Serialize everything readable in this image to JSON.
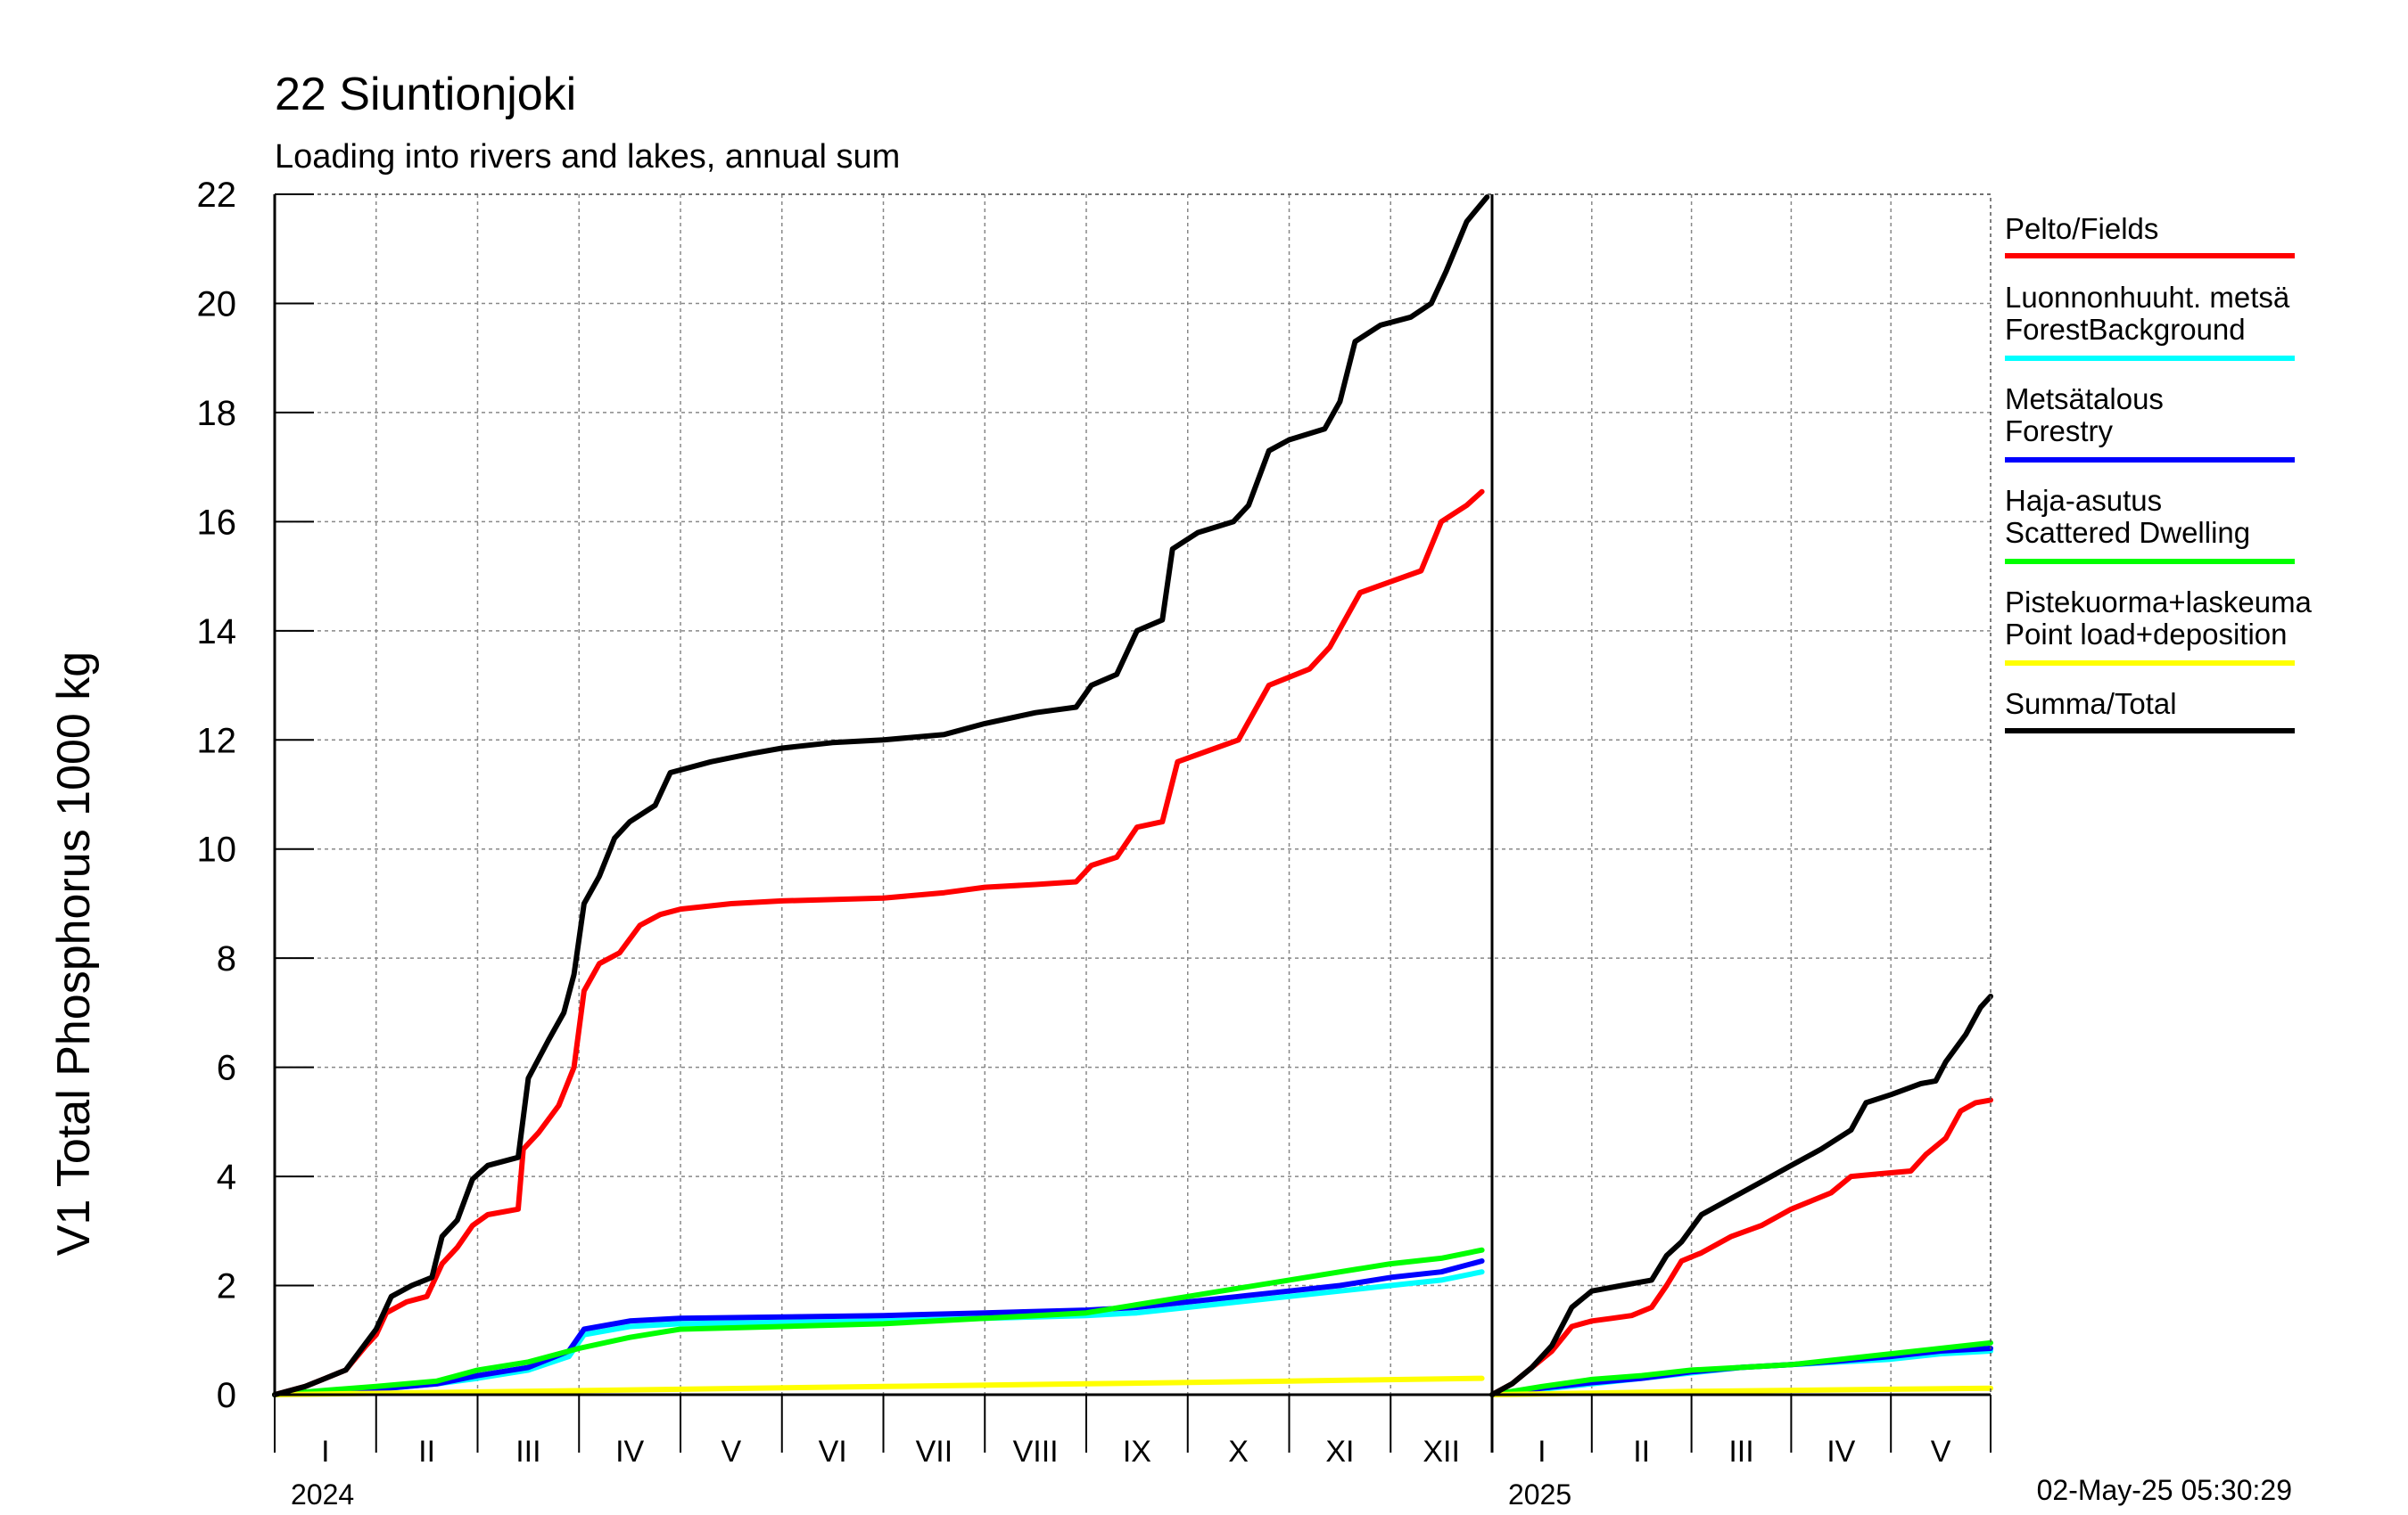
{
  "title": "22 Siuntionjoki",
  "subtitle": "Loading into rivers and lakes, annual sum",
  "timestamp": "02-May-25 05:30:29",
  "chart_data": {
    "type": "line",
    "ylabel": "V1 Total Phosphorus 1000 kg",
    "ylim": [
      0,
      22
    ],
    "yticks": [
      "0",
      "2",
      "4",
      "6",
      "8",
      "10",
      "12",
      "14",
      "16",
      "18",
      "20",
      "22"
    ],
    "grid": true,
    "legend_position": "right",
    "x_unit": "month",
    "panels": [
      {
        "year": "2024",
        "month_labels": [
          "I",
          "II",
          "III",
          "IV",
          "V",
          "VI",
          "VII",
          "VIII",
          "IX",
          "X",
          "XI",
          "XII"
        ],
        "xlim": [
          0,
          12
        ]
      },
      {
        "year": "2025",
        "month_labels": [
          "I",
          "II",
          "III",
          "IV",
          "V"
        ],
        "xlim": [
          0,
          5
        ]
      }
    ],
    "series": [
      {
        "name": "Pelto/Fields",
        "color": "#ff0000",
        "data_2024": [
          [
            0,
            0
          ],
          [
            0.3,
            0.15
          ],
          [
            0.5,
            0.3
          ],
          [
            0.7,
            0.45
          ],
          [
            0.9,
            0.9
          ],
          [
            1.0,
            1.1
          ],
          [
            1.1,
            1.5
          ],
          [
            1.3,
            1.7
          ],
          [
            1.5,
            1.8
          ],
          [
            1.65,
            2.4
          ],
          [
            1.8,
            2.7
          ],
          [
            1.95,
            3.1
          ],
          [
            2.1,
            3.3
          ],
          [
            2.4,
            3.4
          ],
          [
            2.45,
            4.5
          ],
          [
            2.6,
            4.8
          ],
          [
            2.8,
            5.3
          ],
          [
            2.95,
            6.0
          ],
          [
            3.05,
            7.4
          ],
          [
            3.2,
            7.9
          ],
          [
            3.4,
            8.1
          ],
          [
            3.6,
            8.6
          ],
          [
            3.8,
            8.8
          ],
          [
            4.0,
            8.9
          ],
          [
            4.5,
            9.0
          ],
          [
            5.0,
            9.05
          ],
          [
            6.0,
            9.1
          ],
          [
            6.6,
            9.2
          ],
          [
            7.0,
            9.3
          ],
          [
            7.5,
            9.35
          ],
          [
            7.9,
            9.4
          ],
          [
            8.05,
            9.7
          ],
          [
            8.3,
            9.85
          ],
          [
            8.5,
            10.4
          ],
          [
            8.75,
            10.5
          ],
          [
            8.9,
            11.6
          ],
          [
            9.2,
            11.8
          ],
          [
            9.5,
            12.0
          ],
          [
            9.8,
            13.0
          ],
          [
            10.2,
            13.3
          ],
          [
            10.4,
            13.7
          ],
          [
            10.7,
            14.7
          ],
          [
            11.0,
            14.9
          ],
          [
            11.3,
            15.1
          ],
          [
            11.5,
            16.0
          ],
          [
            11.75,
            16.3
          ],
          [
            11.9,
            16.55
          ]
        ],
        "data_2025": [
          [
            0,
            0
          ],
          [
            0.2,
            0.2
          ],
          [
            0.4,
            0.5
          ],
          [
            0.6,
            0.8
          ],
          [
            0.8,
            1.25
          ],
          [
            1.0,
            1.35
          ],
          [
            1.2,
            1.4
          ],
          [
            1.4,
            1.45
          ],
          [
            1.6,
            1.6
          ],
          [
            1.75,
            2.0
          ],
          [
            1.9,
            2.45
          ],
          [
            2.1,
            2.6
          ],
          [
            2.4,
            2.9
          ],
          [
            2.7,
            3.1
          ],
          [
            3.0,
            3.4
          ],
          [
            3.4,
            3.7
          ],
          [
            3.6,
            4.0
          ],
          [
            3.9,
            4.05
          ],
          [
            4.2,
            4.1
          ],
          [
            4.35,
            4.4
          ],
          [
            4.55,
            4.7
          ],
          [
            4.7,
            5.2
          ],
          [
            4.85,
            5.35
          ],
          [
            5.0,
            5.4
          ]
        ]
      },
      {
        "name": "Luonnonhuuht. metsä ForestBackground",
        "label_lines": [
          "Luonnonhuuht. metsä",
          "ForestBackground"
        ],
        "color": "#00ffff",
        "data_2024": [
          [
            0,
            0
          ],
          [
            0.5,
            0.05
          ],
          [
            1.0,
            0.1
          ],
          [
            1.6,
            0.2
          ],
          [
            2.0,
            0.3
          ],
          [
            2.5,
            0.45
          ],
          [
            2.9,
            0.7
          ],
          [
            3.05,
            1.1
          ],
          [
            3.5,
            1.25
          ],
          [
            4.0,
            1.3
          ],
          [
            6.0,
            1.35
          ],
          [
            7.0,
            1.4
          ],
          [
            8.0,
            1.45
          ],
          [
            8.5,
            1.5
          ],
          [
            9.0,
            1.6
          ],
          [
            9.5,
            1.7
          ],
          [
            10.0,
            1.8
          ],
          [
            10.5,
            1.9
          ],
          [
            11.0,
            2.0
          ],
          [
            11.5,
            2.1
          ],
          [
            11.9,
            2.25
          ]
        ],
        "data_2025": [
          [
            0,
            0
          ],
          [
            0.5,
            0.1
          ],
          [
            1.0,
            0.2
          ],
          [
            1.5,
            0.3
          ],
          [
            2.0,
            0.4
          ],
          [
            2.5,
            0.5
          ],
          [
            3.0,
            0.55
          ],
          [
            3.5,
            0.6
          ],
          [
            4.0,
            0.65
          ],
          [
            4.5,
            0.75
          ],
          [
            5.0,
            0.8
          ]
        ]
      },
      {
        "name": "Metsätalous Forestry",
        "label_lines": [
          "Metsätalous",
          "Forestry"
        ],
        "color": "#0000ff",
        "data_2024": [
          [
            0,
            0
          ],
          [
            0.5,
            0.05
          ],
          [
            1.0,
            0.1
          ],
          [
            1.6,
            0.2
          ],
          [
            2.0,
            0.35
          ],
          [
            2.5,
            0.5
          ],
          [
            2.9,
            0.8
          ],
          [
            3.05,
            1.2
          ],
          [
            3.5,
            1.35
          ],
          [
            4.0,
            1.4
          ],
          [
            6.0,
            1.45
          ],
          [
            7.0,
            1.5
          ],
          [
            8.0,
            1.55
          ],
          [
            8.5,
            1.6
          ],
          [
            9.0,
            1.7
          ],
          [
            9.5,
            1.8
          ],
          [
            10.0,
            1.9
          ],
          [
            10.5,
            2.0
          ],
          [
            11.0,
            2.15
          ],
          [
            11.5,
            2.25
          ],
          [
            11.9,
            2.45
          ]
        ],
        "data_2025": [
          [
            0,
            0
          ],
          [
            0.5,
            0.12
          ],
          [
            1.0,
            0.22
          ],
          [
            1.5,
            0.3
          ],
          [
            2.0,
            0.42
          ],
          [
            2.5,
            0.5
          ],
          [
            3.0,
            0.55
          ],
          [
            3.5,
            0.62
          ],
          [
            4.0,
            0.7
          ],
          [
            4.5,
            0.8
          ],
          [
            5.0,
            0.85
          ]
        ]
      },
      {
        "name": "Haja-asutus Scattered Dwelling",
        "label_lines": [
          "Haja-asutus",
          "Scattered Dwelling"
        ],
        "color": "#00ff00",
        "data_2024": [
          [
            0,
            0
          ],
          [
            0.5,
            0.08
          ],
          [
            1.0,
            0.15
          ],
          [
            1.6,
            0.25
          ],
          [
            2.0,
            0.45
          ],
          [
            2.5,
            0.6
          ],
          [
            3.0,
            0.85
          ],
          [
            3.5,
            1.05
          ],
          [
            4.0,
            1.2
          ],
          [
            5.0,
            1.25
          ],
          [
            6.0,
            1.3
          ],
          [
            7.0,
            1.4
          ],
          [
            8.0,
            1.5
          ],
          [
            8.5,
            1.65
          ],
          [
            9.0,
            1.8
          ],
          [
            9.5,
            1.95
          ],
          [
            10.0,
            2.1
          ],
          [
            10.5,
            2.25
          ],
          [
            11.0,
            2.4
          ],
          [
            11.5,
            2.5
          ],
          [
            11.9,
            2.65
          ]
        ],
        "data_2025": [
          [
            0,
            0
          ],
          [
            0.5,
            0.15
          ],
          [
            1.0,
            0.28
          ],
          [
            1.5,
            0.35
          ],
          [
            2.0,
            0.45
          ],
          [
            2.5,
            0.5
          ],
          [
            3.0,
            0.55
          ],
          [
            3.5,
            0.65
          ],
          [
            4.0,
            0.75
          ],
          [
            4.5,
            0.85
          ],
          [
            5.0,
            0.95
          ]
        ]
      },
      {
        "name": "Pistekuorma+laskeuma Point load+deposition",
        "label_lines": [
          "Pistekuorma+laskeuma",
          "Point load+deposition"
        ],
        "color": "#ffff00",
        "data_2024": [
          [
            0,
            0
          ],
          [
            2.0,
            0.05
          ],
          [
            4.0,
            0.1
          ],
          [
            6.0,
            0.15
          ],
          [
            8.0,
            0.2
          ],
          [
            10.0,
            0.25
          ],
          [
            11.9,
            0.3
          ]
        ],
        "data_2025": [
          [
            0,
            0
          ],
          [
            1.0,
            0.03
          ],
          [
            2.0,
            0.06
          ],
          [
            3.0,
            0.08
          ],
          [
            4.0,
            0.1
          ],
          [
            5.0,
            0.12
          ]
        ]
      },
      {
        "name": "Summa/Total",
        "color": "#000000",
        "data_2024": [
          [
            0,
            0
          ],
          [
            0.3,
            0.15
          ],
          [
            0.5,
            0.3
          ],
          [
            0.7,
            0.45
          ],
          [
            0.9,
            0.95
          ],
          [
            1.0,
            1.2
          ],
          [
            1.15,
            1.8
          ],
          [
            1.35,
            2.0
          ],
          [
            1.55,
            2.15
          ],
          [
            1.65,
            2.9
          ],
          [
            1.8,
            3.2
          ],
          [
            1.95,
            3.95
          ],
          [
            2.1,
            4.2
          ],
          [
            2.4,
            4.35
          ],
          [
            2.5,
            5.8
          ],
          [
            2.7,
            6.5
          ],
          [
            2.85,
            7.0
          ],
          [
            2.95,
            7.7
          ],
          [
            3.05,
            9.0
          ],
          [
            3.2,
            9.5
          ],
          [
            3.35,
            10.2
          ],
          [
            3.5,
            10.5
          ],
          [
            3.75,
            10.8
          ],
          [
            3.9,
            11.4
          ],
          [
            4.3,
            11.6
          ],
          [
            4.7,
            11.75
          ],
          [
            5.0,
            11.85
          ],
          [
            5.5,
            11.95
          ],
          [
            6.0,
            12.0
          ],
          [
            6.6,
            12.1
          ],
          [
            7.0,
            12.3
          ],
          [
            7.5,
            12.5
          ],
          [
            7.9,
            12.6
          ],
          [
            8.05,
            13.0
          ],
          [
            8.3,
            13.2
          ],
          [
            8.5,
            14.0
          ],
          [
            8.75,
            14.2
          ],
          [
            8.85,
            15.5
          ],
          [
            9.1,
            15.8
          ],
          [
            9.45,
            16.0
          ],
          [
            9.6,
            16.3
          ],
          [
            9.8,
            17.3
          ],
          [
            10.0,
            17.5
          ],
          [
            10.35,
            17.7
          ],
          [
            10.5,
            18.2
          ],
          [
            10.65,
            19.3
          ],
          [
            10.9,
            19.6
          ],
          [
            11.2,
            19.75
          ],
          [
            11.4,
            20.0
          ],
          [
            11.55,
            20.6
          ],
          [
            11.75,
            21.5
          ],
          [
            11.95,
            21.95
          ]
        ],
        "data_2025": [
          [
            0,
            0
          ],
          [
            0.2,
            0.2
          ],
          [
            0.4,
            0.5
          ],
          [
            0.6,
            0.9
          ],
          [
            0.8,
            1.6
          ],
          [
            1.0,
            1.9
          ],
          [
            1.3,
            2.0
          ],
          [
            1.6,
            2.1
          ],
          [
            1.75,
            2.55
          ],
          [
            1.9,
            2.8
          ],
          [
            2.1,
            3.3
          ],
          [
            2.4,
            3.6
          ],
          [
            2.7,
            3.9
          ],
          [
            3.0,
            4.2
          ],
          [
            3.3,
            4.5
          ],
          [
            3.6,
            4.85
          ],
          [
            3.75,
            5.35
          ],
          [
            4.0,
            5.5
          ],
          [
            4.3,
            5.7
          ],
          [
            4.45,
            5.75
          ],
          [
            4.55,
            6.1
          ],
          [
            4.75,
            6.6
          ],
          [
            4.9,
            7.1
          ],
          [
            5.0,
            7.3
          ]
        ]
      }
    ]
  }
}
